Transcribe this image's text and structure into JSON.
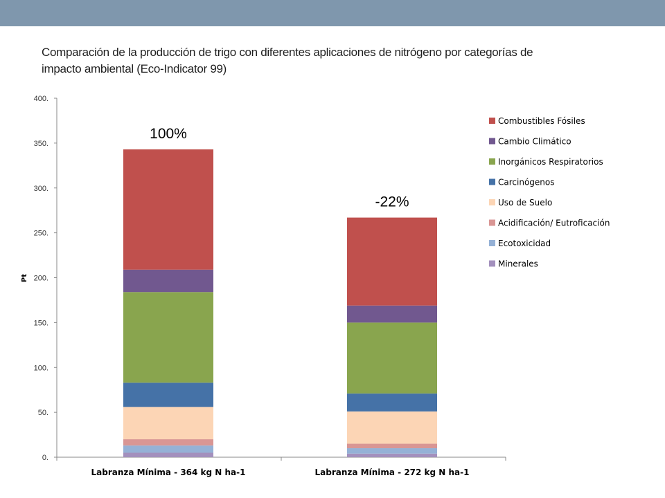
{
  "slide": {
    "title_line1": "Comparación de la producción de trigo con diferentes aplicaciones de nitrógeno  por categorías de",
    "title_line2": "impacto ambiental (Eco-Indicator 99)",
    "header_bar_color": "#7f97ad"
  },
  "chart_data": {
    "type": "bar",
    "stacked": true,
    "title": "",
    "xlabel": "",
    "ylabel": "Pt",
    "ylim": [
      0,
      400
    ],
    "yticks": [
      0,
      50,
      100,
      150,
      200,
      250,
      300,
      350,
      400
    ],
    "ytick_labels": [
      "0.",
      "50.",
      "100.",
      "150.",
      "200.",
      "250.",
      "300.",
      "350.",
      "400."
    ],
    "grid": false,
    "legend_position": "right",
    "categories": [
      "Labranza Mínima - 364 kg N ha-1",
      "Labranza Mínima - 272 kg N ha-1"
    ],
    "annotations": [
      "100%",
      "-22%"
    ],
    "series": [
      {
        "name": "Minerales",
        "color": "#a390bd",
        "values": [
          5,
          4
        ]
      },
      {
        "name": "Ecotoxicidad",
        "color": "#95b1d6",
        "values": [
          8,
          6
        ]
      },
      {
        "name": "Acidificación/ Eutroficación",
        "color": "#d99694",
        "values": [
          7,
          5
        ]
      },
      {
        "name": "Uso de Suelo",
        "color": "#fcd5b5",
        "values": [
          36,
          36
        ]
      },
      {
        "name": "Carcinógenos",
        "color": "#4572a7",
        "values": [
          27,
          20
        ]
      },
      {
        "name": "Inorgánicos Respiratorios",
        "color": "#89a54e",
        "values": [
          101,
          79
        ]
      },
      {
        "name": "Cambio Climático",
        "color": "#71588f",
        "values": [
          25,
          19
        ]
      },
      {
        "name": "Combustibles Fósiles",
        "color": "#c0504d",
        "values": [
          134,
          98
        ]
      }
    ]
  }
}
